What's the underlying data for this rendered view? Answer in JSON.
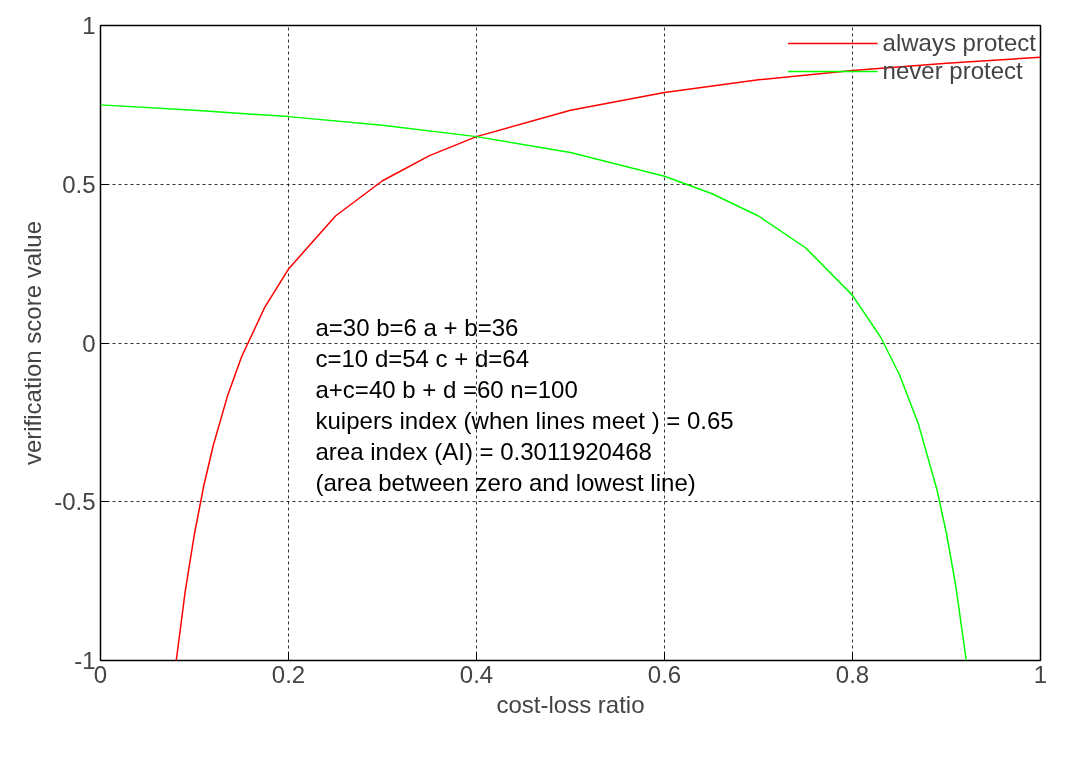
{
  "chart_data": {
    "type": "line",
    "xlabel": "cost-loss ratio",
    "ylabel": "verification score value",
    "xlim": [
      0,
      1
    ],
    "ylim": [
      -1,
      1
    ],
    "xticks": [
      0,
      0.2,
      0.4,
      0.6,
      0.8,
      1
    ],
    "yticks": [
      -1,
      -0.5,
      0,
      0.5,
      1
    ],
    "grid": true,
    "legend": "top right",
    "line_style": "solid",
    "marker": "none",
    "series": [
      {
        "name": "always protect",
        "color": "#ff0000",
        "x": [
          0.0806,
          0.09,
          0.1,
          0.11,
          0.12,
          0.135,
          0.15,
          0.175,
          0.2,
          0.25,
          0.3,
          0.35,
          0.4,
          0.5,
          0.6,
          0.7,
          0.8,
          0.9,
          1
        ],
        "values": [
          -1,
          -0.785,
          -0.6,
          -0.448,
          -0.322,
          -0.168,
          -0.044,
          0.114,
          0.233,
          0.4,
          0.511,
          0.59,
          0.65,
          0.733,
          0.789,
          0.829,
          0.858,
          0.881,
          0.9
        ]
      },
      {
        "name": "never protect",
        "color": "#00ff00",
        "x": [
          0,
          0.1,
          0.2,
          0.3,
          0.4,
          0.5,
          0.6,
          0.65,
          0.7,
          0.75,
          0.8,
          0.83,
          0.85,
          0.87,
          0.89,
          0.9,
          0.91,
          0.921
        ],
        "values": [
          0.75,
          0.733,
          0.713,
          0.686,
          0.65,
          0.6,
          0.525,
          0.471,
          0.4,
          0.3,
          0.15,
          0.018,
          -0.1,
          -0.254,
          -0.464,
          -0.6,
          -0.767,
          -1
        ]
      }
    ],
    "annotations": [
      "a=30 b=6 a + b=36",
      "c=10 d=54 c + d=64",
      "a+c=40 b + d =60 n=100",
      "kuipers index (when lines meet ) =  0.65",
      "area index (AI) = 0.3011920468",
      "(area between zero and lowest line)"
    ]
  }
}
